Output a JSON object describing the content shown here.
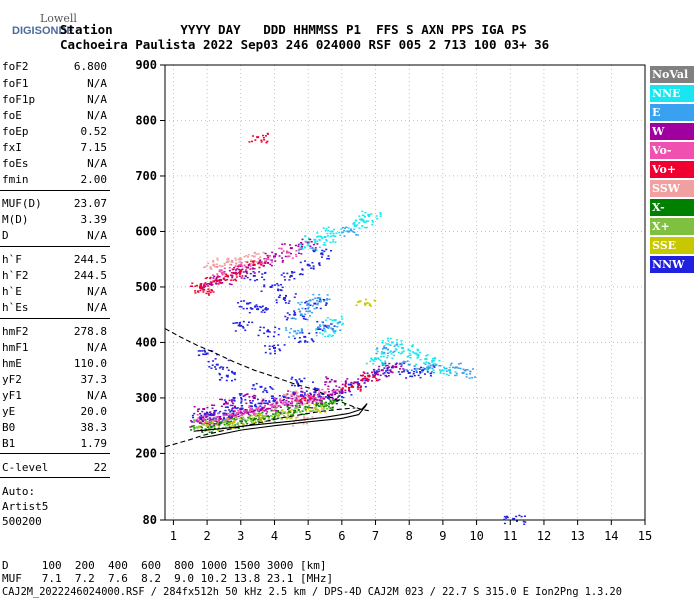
{
  "logo": {
    "line1": "Lowell",
    "line2": "DIGISONDE"
  },
  "header": {
    "line1": "Station         YYYY DAY   DDD HHMMSS P1  FFS S AXN PPS IGA PS",
    "line2": "Cachoeira Paulista 2022 Sep03 246 024000 RSF 005 2 713 100 03+ 36"
  },
  "scaled_params": [
    {
      "name": "foF2",
      "value": "6.800"
    },
    {
      "name": "foF1",
      "value": "N/A"
    },
    {
      "name": "foF1p",
      "value": "N/A"
    },
    {
      "name": "foE",
      "value": "N/A"
    },
    {
      "name": "foEp",
      "value": "0.52"
    },
    {
      "name": "fxI",
      "value": "7.15"
    },
    {
      "name": "foEs",
      "value": "N/A"
    },
    {
      "name": "fmin",
      "value": "2.00"
    },
    {
      "name": "MUF(D)",
      "value": "23.07"
    },
    {
      "name": "M(D)",
      "value": "3.39"
    },
    {
      "name": "D",
      "value": "N/A"
    },
    {
      "name": "h`F",
      "value": "244.5"
    },
    {
      "name": "h`F2",
      "value": "244.5"
    },
    {
      "name": "h`E",
      "value": "N/A"
    },
    {
      "name": "h`Es",
      "value": "N/A"
    },
    {
      "name": "hmF2",
      "value": "278.8"
    },
    {
      "name": "hmF1",
      "value": "N/A"
    },
    {
      "name": "hmE",
      "value": "110.0"
    },
    {
      "name": "yF2",
      "value": "37.3"
    },
    {
      "name": "yF1",
      "value": "N/A"
    },
    {
      "name": "yE",
      "value": "20.0"
    },
    {
      "name": "B0",
      "value": "38.3"
    },
    {
      "name": "B1",
      "value": "1.79"
    },
    {
      "name": "C-level",
      "value": "22"
    }
  ],
  "autoscaling": {
    "l1": "Auto:",
    "l2": "Artist5",
    "l3": "500200"
  },
  "legend": [
    {
      "label": "NoVal",
      "color": "#808080"
    },
    {
      "label": "NNE",
      "color": "#19e6f0"
    },
    {
      "label": "E",
      "color": "#3aa0f0"
    },
    {
      "label": "W",
      "color": "#a000a0"
    },
    {
      "label": "Vo-",
      "color": "#f050b0"
    },
    {
      "label": "Vo+",
      "color": "#f00030"
    },
    {
      "label": "SSW",
      "color": "#f0a0a0"
    },
    {
      "label": "X-",
      "color": "#008000"
    },
    {
      "label": "X+",
      "color": "#80c040"
    },
    {
      "label": "SSE",
      "color": "#c8c800"
    },
    {
      "label": "NNW",
      "color": "#2020e0"
    }
  ],
  "footer": {
    "d_row": "D     100  200  400  600  800 1000 1500 3000 [km]",
    "muf_row": "MUF   7.1  7.2  7.6  8.2  9.0 10.2 13.8 23.1 [MHz]",
    "file_row": "CAJ2M_2022246024000.RSF / 284fx512h 50 kHz 2.5 km / DPS-4D CAJ2M 023 / 22.7 S 315.0 E Ion2Png 1.3.20"
  },
  "chart_data": {
    "type": "scatter",
    "xlim": [
      0.75,
      15
    ],
    "ylim": [
      80,
      900
    ],
    "x_ticks": [
      "1",
      "2",
      "3",
      "4",
      "5",
      "6",
      "7",
      "8",
      "9",
      "10",
      "11",
      "12",
      "13",
      "14",
      "15"
    ],
    "y_ticks": [
      "80",
      "200",
      "300",
      "400",
      "500",
      "600",
      "700",
      "800",
      "900"
    ],
    "grid": true,
    "legend_placement": "right",
    "series": [
      {
        "name": "NNW",
        "color": "#2020e0",
        "points": [
          [
            1.8,
            265
          ],
          [
            2.0,
            268
          ],
          [
            2.2,
            270
          ],
          [
            2.5,
            272
          ],
          [
            2.8,
            276
          ],
          [
            3.0,
            280
          ],
          [
            3.3,
            285
          ],
          [
            3.6,
            290
          ],
          [
            4.0,
            296
          ],
          [
            4.4,
            300
          ],
          [
            4.8,
            305
          ],
          [
            5.2,
            310
          ],
          [
            5.6,
            300
          ],
          [
            6.0,
            310
          ],
          [
            6.5,
            325
          ],
          [
            7.0,
            345
          ],
          [
            7.5,
            355
          ],
          [
            8.0,
            345
          ],
          [
            8.4,
            350
          ],
          [
            2.0,
            380
          ],
          [
            2.3,
            360
          ],
          [
            2.6,
            340
          ],
          [
            3.0,
            430
          ],
          [
            3.2,
            470
          ],
          [
            3.5,
            460
          ],
          [
            3.8,
            420
          ],
          [
            4.0,
            390
          ],
          [
            4.3,
            480
          ],
          [
            4.6,
            450
          ],
          [
            4.9,
            410
          ],
          [
            5.2,
            470
          ],
          [
            5.5,
            430
          ],
          [
            3.4,
            520
          ],
          [
            3.9,
            500
          ],
          [
            4.5,
            520
          ],
          [
            5.0,
            540
          ],
          [
            5.4,
            560
          ],
          [
            2.8,
            300
          ],
          [
            3.6,
            320
          ],
          [
            4.8,
            330
          ],
          [
            11.1,
            82
          ]
        ]
      },
      {
        "name": "W",
        "color": "#a000a0",
        "points": [
          [
            1.8,
            255
          ],
          [
            2.1,
            258
          ],
          [
            2.4,
            262
          ],
          [
            2.8,
            268
          ],
          [
            3.2,
            273
          ],
          [
            3.6,
            278
          ],
          [
            4.0,
            284
          ],
          [
            4.4,
            288
          ],
          [
            4.8,
            292
          ],
          [
            5.2,
            298
          ],
          [
            5.6,
            305
          ],
          [
            6.0,
            315
          ],
          [
            6.4,
            328
          ],
          [
            6.8,
            340
          ],
          [
            7.2,
            350
          ],
          [
            7.6,
            356
          ],
          [
            1.9,
            280
          ],
          [
            2.6,
            290
          ],
          [
            3.4,
            300
          ],
          [
            4.6,
            310
          ],
          [
            5.8,
            330
          ],
          [
            2.1,
            505
          ],
          [
            2.4,
            512
          ],
          [
            2.8,
            525
          ],
          [
            3.2,
            535
          ],
          [
            3.6,
            545
          ],
          [
            4.0,
            555
          ],
          [
            4.5,
            570
          ],
          [
            5.0,
            580
          ]
        ]
      },
      {
        "name": "Vo-",
        "color": "#f050b0",
        "points": [
          [
            1.9,
            262
          ],
          [
            2.3,
            265
          ],
          [
            2.7,
            270
          ],
          [
            3.1,
            276
          ],
          [
            3.5,
            281
          ],
          [
            3.9,
            287
          ],
          [
            4.3,
            292
          ],
          [
            4.7,
            297
          ],
          [
            5.1,
            302
          ],
          [
            5.5,
            310
          ],
          [
            2.4,
            530
          ],
          [
            3.0,
            540
          ],
          [
            3.8,
            550
          ],
          [
            4.4,
            562
          ]
        ]
      },
      {
        "name": "Vo+",
        "color": "#f00030",
        "points": [
          [
            1.8,
            500
          ],
          [
            1.9,
            495
          ],
          [
            2.2,
            510
          ],
          [
            2.6,
            520
          ],
          [
            3.0,
            530
          ],
          [
            3.4,
            540
          ],
          [
            6.3,
            320
          ],
          [
            6.8,
            340
          ],
          [
            4.9,
            300
          ],
          [
            3.5,
            770
          ]
        ]
      },
      {
        "name": "X-",
        "color": "#008000",
        "points": [
          [
            1.8,
            248
          ],
          [
            2.2,
            250
          ],
          [
            2.6,
            254
          ],
          [
            3.0,
            258
          ],
          [
            3.4,
            262
          ],
          [
            3.8,
            267
          ],
          [
            4.2,
            272
          ],
          [
            4.6,
            277
          ],
          [
            5.0,
            283
          ],
          [
            5.4,
            289
          ],
          [
            5.8,
            295
          ]
        ]
      },
      {
        "name": "X+",
        "color": "#80c040",
        "points": [
          [
            1.9,
            252
          ],
          [
            2.5,
            256
          ],
          [
            3.1,
            261
          ],
          [
            3.7,
            267
          ],
          [
            4.3,
            274
          ],
          [
            4.9,
            281
          ],
          [
            5.5,
            288
          ]
        ]
      },
      {
        "name": "SSE",
        "color": "#c8c800",
        "points": [
          [
            2.0,
            250
          ],
          [
            2.8,
            256
          ],
          [
            3.6,
            264
          ],
          [
            4.4,
            272
          ],
          [
            5.2,
            282
          ],
          [
            6.7,
            470
          ]
        ]
      },
      {
        "name": "NNE",
        "color": "#19e6f0",
        "points": [
          [
            5.0,
            575
          ],
          [
            5.2,
            585
          ],
          [
            5.5,
            590
          ],
          [
            5.7,
            600
          ],
          [
            6.4,
            610
          ],
          [
            6.6,
            620
          ],
          [
            6.8,
            630
          ],
          [
            7.0,
            370
          ],
          [
            7.2,
            380
          ],
          [
            7.5,
            400
          ],
          [
            7.8,
            390
          ],
          [
            8.2,
            380
          ],
          [
            8.5,
            370
          ],
          [
            8.8,
            360
          ],
          [
            9.2,
            350
          ],
          [
            5.5,
            420
          ],
          [
            5.8,
            440
          ]
        ]
      },
      {
        "name": "E",
        "color": "#3aa0f0",
        "points": [
          [
            4.8,
            450
          ],
          [
            5.0,
            470
          ],
          [
            5.3,
            480
          ],
          [
            5.6,
            430
          ],
          [
            4.6,
            420
          ],
          [
            6.2,
            600
          ],
          [
            7.3,
            390
          ],
          [
            8.0,
            360
          ],
          [
            8.6,
            355
          ],
          [
            9.4,
            355
          ],
          [
            9.6,
            345
          ]
        ]
      },
      {
        "name": "SSW",
        "color": "#f0a0a0",
        "points": [
          [
            2.2,
            540
          ],
          [
            2.6,
            545
          ],
          [
            3.0,
            550
          ],
          [
            3.4,
            555
          ],
          [
            4.8,
            260
          ],
          [
            4.5,
            305
          ]
        ]
      }
    ],
    "profile_line": {
      "x": [
        1.6,
        2.5,
        3.5,
        4.5,
        5.5,
        6.2,
        6.6,
        6.75,
        6.7,
        6.5,
        6.0,
        5.0,
        4.0,
        3.0,
        2.2,
        1.8
      ],
      "y": [
        240,
        245,
        252,
        258,
        265,
        272,
        280,
        290,
        285,
        270,
        263,
        257,
        250,
        242,
        232,
        228
      ]
    },
    "profile_extension": {
      "x": [
        0.75,
        1.1,
        1.5,
        1.9,
        2.4,
        3.0,
        3.6,
        4.2,
        4.8,
        5.4,
        6.0,
        6.4
      ],
      "y": [
        212,
        218,
        225,
        233,
        240,
        248,
        256,
        264,
        270,
        276,
        280,
        282
      ]
    },
    "dashed_topside": {
      "x": [
        0.75,
        1.2,
        1.7,
        2.2,
        2.8,
        3.4,
        4.0,
        4.6,
        5.2,
        5.7,
        6.1,
        6.4,
        6.6,
        6.8
      ],
      "y": [
        425,
        410,
        395,
        382,
        365,
        350,
        338,
        325,
        315,
        300,
        290,
        283,
        279,
        277
      ]
    }
  }
}
